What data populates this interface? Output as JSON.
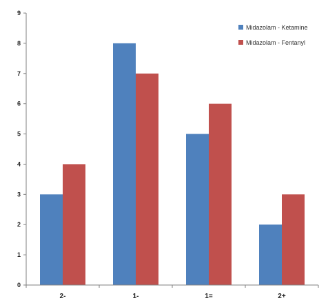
{
  "chart_data": {
    "type": "bar",
    "title": "",
    "xlabel": "",
    "ylabel": "",
    "categories": [
      "2-",
      "1-",
      "1=",
      "2+"
    ],
    "series": [
      {
        "name": "Midazolam - Ketamine",
        "color": "#4f81bd",
        "values": [
          3,
          8,
          5,
          2
        ]
      },
      {
        "name": "Midazolam - Fentanyl",
        "color": "#c0504d",
        "values": [
          4,
          7,
          6,
          3
        ]
      }
    ],
    "ylim": [
      0,
      9
    ],
    "yticks": [
      0,
      1,
      2,
      3,
      4,
      5,
      6,
      7,
      8,
      9
    ],
    "grid": false,
    "legend_position": "top-right"
  }
}
